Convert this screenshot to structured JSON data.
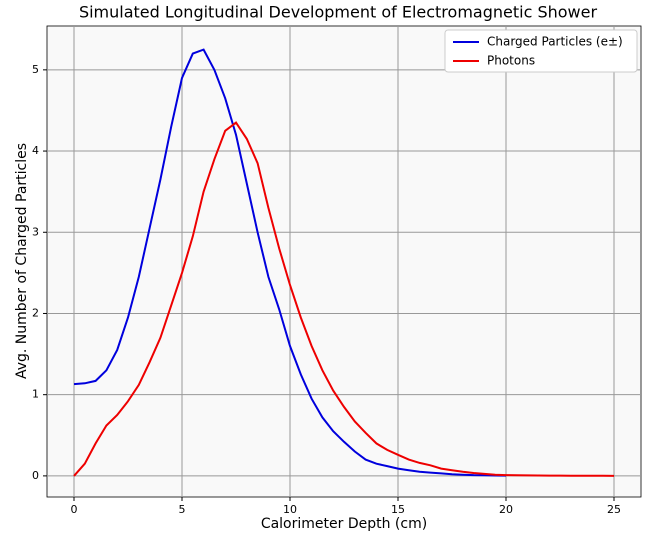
{
  "chart_data": {
    "type": "line",
    "title": "Simulated Longitudinal Development of Electromagnetic Shower",
    "xlabel": "Calorimeter Depth (cm)",
    "ylabel": "Avg. Number of Charged Particles",
    "x": [
      0,
      0.5,
      1,
      1.5,
      2,
      2.5,
      3,
      3.5,
      4,
      4.5,
      5,
      5.5,
      6,
      6.5,
      7,
      7.5,
      8,
      8.5,
      9,
      9.5,
      10,
      10.5,
      11,
      11.5,
      12,
      12.5,
      13,
      13.5,
      14,
      14.5,
      15,
      15.5,
      16,
      16.5,
      17,
      17.5,
      18,
      18.5,
      19,
      19.5,
      20,
      20.5,
      21,
      21.5,
      22,
      22.5,
      23,
      23.5,
      24,
      24.5,
      25
    ],
    "series": [
      {
        "name": "Charged Particles (e±)",
        "color": "#0000dd",
        "values": [
          1.13,
          1.14,
          1.17,
          1.3,
          1.55,
          1.95,
          2.45,
          3.05,
          3.65,
          4.3,
          4.9,
          5.2,
          5.25,
          5.0,
          4.65,
          4.2,
          3.6,
          3.0,
          2.45,
          2.05,
          1.6,
          1.25,
          0.95,
          0.72,
          0.55,
          0.42,
          0.3,
          0.2,
          0.15,
          0.12,
          0.09,
          0.07,
          0.05,
          0.04,
          0.03,
          0.02,
          0.015,
          0.01,
          0.008,
          0.005,
          0.004,
          null,
          null,
          null,
          null,
          null,
          null,
          null,
          null,
          null,
          null
        ]
      },
      {
        "name": "Photons",
        "color": "#ee0000",
        "values": [
          0,
          0.15,
          0.4,
          0.62,
          0.75,
          0.92,
          1.12,
          1.4,
          1.7,
          2.1,
          2.5,
          2.95,
          3.5,
          3.9,
          4.25,
          4.35,
          4.15,
          3.85,
          3.3,
          2.8,
          2.35,
          1.95,
          1.6,
          1.3,
          1.05,
          0.85,
          0.67,
          0.53,
          0.4,
          0.32,
          0.26,
          0.2,
          0.16,
          0.13,
          0.09,
          0.07,
          0.05,
          0.035,
          0.025,
          0.015,
          0.01,
          0.008,
          0.006,
          0.005,
          0.004,
          0.003,
          0.002,
          0.002,
          0.001,
          0.001,
          0
        ]
      }
    ],
    "xlim": [
      -1.25,
      26.25
    ],
    "ylim": [
      -0.26,
      5.54
    ],
    "xticks": [
      0,
      5,
      10,
      15,
      20,
      25
    ],
    "yticks": [
      0,
      1,
      2,
      3,
      4,
      5
    ],
    "grid": true,
    "legend": "upper right"
  }
}
